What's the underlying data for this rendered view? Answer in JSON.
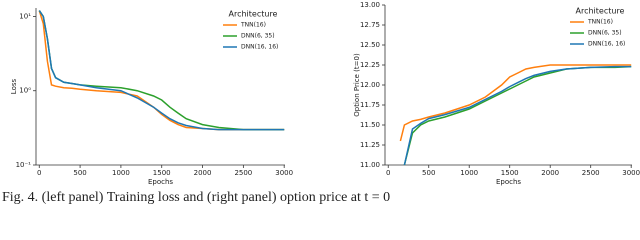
{
  "chart_data": [
    {
      "type": "line",
      "yscale": "log",
      "xlabel": "Epochs",
      "ylabel": "Loss",
      "legend_title": "Architecture",
      "legend": "upper right",
      "x": [
        0,
        50,
        100,
        150,
        200,
        300,
        400,
        500,
        700,
        1000,
        1200,
        1400,
        1500,
        1600,
        1700,
        1800,
        2000,
        2200,
        2500,
        2800,
        3000
      ],
      "xlim": [
        -40,
        3010
      ],
      "xticks": [
        0,
        500,
        1000,
        1500,
        2000,
        2500,
        3000
      ],
      "ylim": [
        0.1,
        13
      ],
      "yticks": [
        {
          "value": 0.1,
          "label": "10⁻¹"
        },
        {
          "value": 1,
          "label": "10⁰"
        },
        {
          "value": 10,
          "label": "10¹"
        }
      ],
      "series": [
        {
          "name": "TNN(16)",
          "color": "#ff7f0e",
          "values": [
            12,
            8,
            2.5,
            1.2,
            1.15,
            1.1,
            1.08,
            1.05,
            1.0,
            0.95,
            0.85,
            0.6,
            0.48,
            0.4,
            0.35,
            0.32,
            0.31,
            0.3,
            0.3,
            0.3,
            0.3
          ]
        },
        {
          "name": "DNN(6, 35)",
          "color": "#2ca02c",
          "values": [
            12,
            10,
            5,
            2,
            1.5,
            1.3,
            1.25,
            1.2,
            1.15,
            1.1,
            1.0,
            0.85,
            0.75,
            0.6,
            0.5,
            0.42,
            0.35,
            0.32,
            0.3,
            0.3,
            0.3
          ]
        },
        {
          "name": "DNN(16, 16)",
          "color": "#1f77b4",
          "values": [
            12,
            10,
            5,
            2,
            1.5,
            1.3,
            1.25,
            1.2,
            1.1,
            1.0,
            0.8,
            0.6,
            0.5,
            0.42,
            0.37,
            0.34,
            0.31,
            0.3,
            0.3,
            0.3,
            0.3
          ]
        }
      ]
    },
    {
      "type": "line",
      "xlabel": "Epochs",
      "ylabel": "Option Price (t=0)",
      "legend_title": "Architecture",
      "legend": "upper right",
      "x": [
        0,
        50,
        100,
        150,
        200,
        300,
        400,
        500,
        700,
        1000,
        1200,
        1400,
        1500,
        1600,
        1700,
        1800,
        2000,
        2200,
        2500,
        2800,
        3000
      ],
      "xlim": [
        -40,
        3010
      ],
      "xticks": [
        0,
        500,
        1000,
        1500,
        2000,
        2500,
        3000
      ],
      "ylim": [
        11.0,
        13.0
      ],
      "yticks": [
        {
          "value": 11,
          "label": "11.00"
        },
        {
          "value": 11.25,
          "label": "11.25"
        },
        {
          "value": 11.5,
          "label": "11.50"
        },
        {
          "value": 11.75,
          "label": "11.75"
        },
        {
          "value": 12,
          "label": "12.00"
        },
        {
          "value": 12.25,
          "label": "12.25"
        },
        {
          "value": 12.5,
          "label": "12.50"
        },
        {
          "value": 12.75,
          "label": "12.75"
        },
        {
          "value": 13,
          "label": "13.00"
        }
      ],
      "series": [
        {
          "name": "TNN(16)",
          "color": "#ff7f0e",
          "values": [
            null,
            null,
            null,
            11.3,
            11.5,
            11.55,
            11.57,
            11.6,
            11.65,
            11.75,
            11.85,
            12.0,
            12.1,
            12.15,
            12.2,
            12.22,
            12.25,
            12.25,
            12.25,
            12.25,
            12.25
          ]
        },
        {
          "name": "DNN(6, 35)",
          "color": "#2ca02c",
          "values": [
            null,
            null,
            null,
            null,
            11.0,
            11.4,
            11.5,
            11.55,
            11.6,
            11.7,
            11.8,
            11.9,
            11.95,
            12.0,
            12.05,
            12.1,
            12.15,
            12.2,
            12.22,
            12.22,
            12.23
          ]
        },
        {
          "name": "DNN(16, 16)",
          "color": "#1f77b4",
          "values": [
            null,
            null,
            null,
            null,
            11.0,
            11.45,
            11.52,
            11.58,
            11.63,
            11.72,
            11.82,
            11.92,
            11.98,
            12.03,
            12.08,
            12.12,
            12.17,
            12.2,
            12.22,
            12.23,
            12.23
          ]
        }
      ]
    }
  ],
  "caption": "Fig. 4. (left panel) Training loss and (right panel) option price at t = 0"
}
